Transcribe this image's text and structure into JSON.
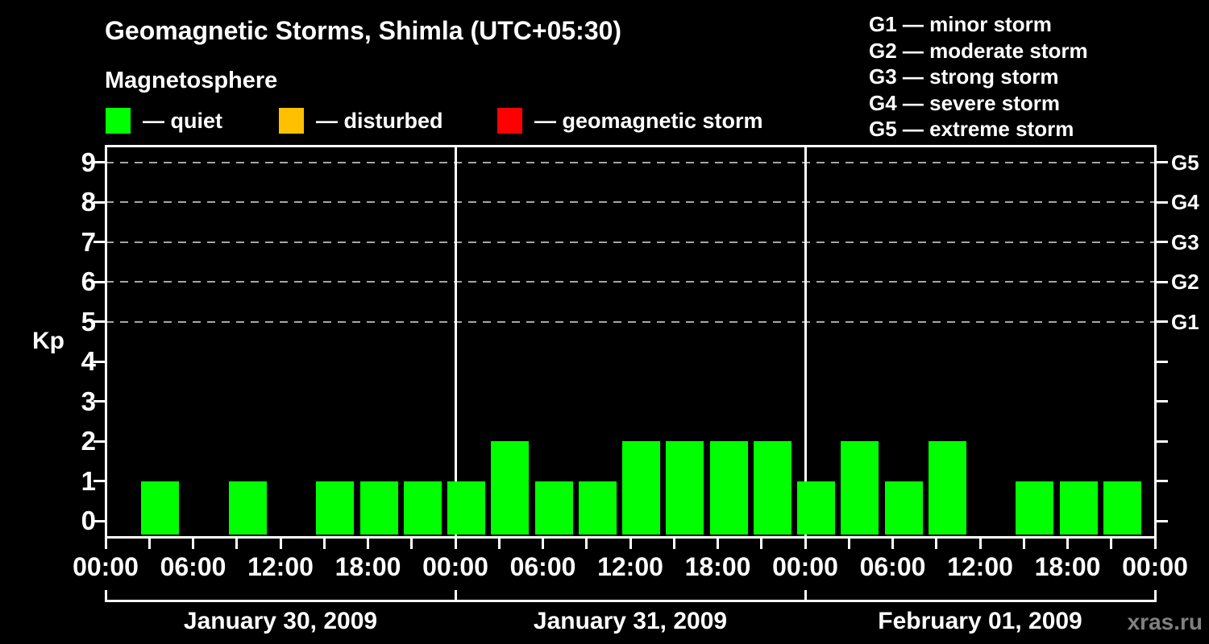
{
  "header": {
    "title": "Geomagnetic Storms, Shimla (UTC+05:30)",
    "subtitle": "Magnetosphere"
  },
  "legend": {
    "items": [
      {
        "name": "quiet",
        "label": "— quiet",
        "color": "#00ff00"
      },
      {
        "name": "disturbed",
        "label": "— disturbed",
        "color": "#ffc000"
      },
      {
        "name": "geomagnetic-storm",
        "label": "— geomagnetic storm",
        "color": "#ff0000"
      }
    ]
  },
  "g_scale": {
    "lines": [
      "G1 — minor storm",
      "G2 — moderate storm",
      "G3 — strong storm",
      "G4 — severe storm",
      "G5 — extreme storm"
    ]
  },
  "watermark": "xras.ru",
  "chart_data": {
    "type": "bar",
    "title": "Geomagnetic Storms, Shimla (UTC+05:30)",
    "subtitle": "Magnetosphere",
    "ylabel": "Kp",
    "ylim": [
      0,
      9.4
    ],
    "yticks": [
      0,
      1,
      2,
      3,
      4,
      5,
      6,
      7,
      8,
      9
    ],
    "grid": "dashed horizontal lines at Kp 5-9",
    "grid_kp_levels": [
      5,
      6,
      7,
      8,
      9
    ],
    "right_axis": [
      {
        "kp": 5,
        "label": "G1"
      },
      {
        "kp": 6,
        "label": "G2"
      },
      {
        "kp": 7,
        "label": "G3"
      },
      {
        "kp": 8,
        "label": "G4"
      },
      {
        "kp": 9,
        "label": "G5"
      }
    ],
    "bar_color_quiet": "#00ff00",
    "bar_color_disturbed": "#ffc000",
    "bar_color_storm": "#ff0000",
    "interval_hours": 3,
    "x_label_hours": [
      "00:00",
      "06:00",
      "12:00",
      "18:00"
    ],
    "x_final_label": "00:00",
    "legend_position": "top",
    "days": [
      {
        "date": "January 30, 2009",
        "kp_values_3h": [
          0,
          1,
          0,
          1,
          0,
          1,
          1,
          1
        ]
      },
      {
        "date": "January 31, 2009",
        "kp_values_3h": [
          1,
          2,
          1,
          1,
          2,
          2,
          2,
          2
        ]
      },
      {
        "date": "February 01, 2009",
        "kp_values_3h": [
          1,
          2,
          1,
          2,
          0,
          1,
          1,
          1
        ]
      }
    ]
  }
}
